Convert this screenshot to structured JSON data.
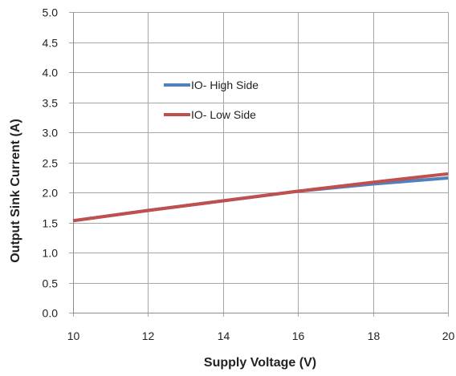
{
  "chart_data": {
    "type": "line",
    "title": "",
    "xlabel": "Supply Voltage (V)",
    "ylabel": "Output Sink Current (A)",
    "xlim": [
      10,
      20
    ],
    "ylim": [
      0.0,
      5.0
    ],
    "x_ticks": [
      "10",
      "12",
      "14",
      "16",
      "18",
      "20"
    ],
    "y_ticks": [
      "0.0",
      "0.5",
      "1.0",
      "1.5",
      "2.0",
      "2.5",
      "3.0",
      "3.5",
      "4.0",
      "4.5",
      "5.0"
    ],
    "grid": true,
    "legend_position": "top-left-inside",
    "series": [
      {
        "name": "IO- High Side",
        "color": "#4f81bd",
        "x": [
          10,
          12,
          14,
          16,
          18,
          20
        ],
        "y": [
          1.53,
          1.7,
          1.86,
          2.02,
          2.14,
          2.24
        ]
      },
      {
        "name": "IO- Low Side",
        "color": "#c0504d",
        "x": [
          10,
          12,
          14,
          16,
          18,
          20
        ],
        "y": [
          1.53,
          1.7,
          1.86,
          2.02,
          2.17,
          2.31
        ]
      }
    ]
  }
}
